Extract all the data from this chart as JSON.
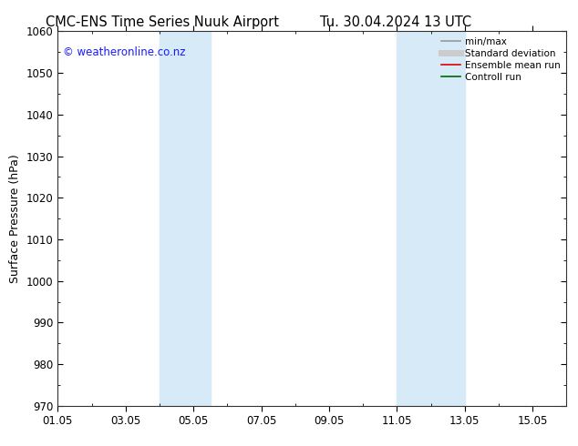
{
  "title_left": "CMC-ENS Time Series Nuuk Airport",
  "title_right": "Tu. 30.04.2024 13 UTC",
  "ylabel": "Surface Pressure (hPa)",
  "ylim": [
    970,
    1060
  ],
  "yticks": [
    970,
    980,
    990,
    1000,
    1010,
    1020,
    1030,
    1040,
    1050,
    1060
  ],
  "x_start": "2024-05-01",
  "x_end": "2024-05-16",
  "xtick_labels": [
    "01.05",
    "03.05",
    "05.05",
    "07.05",
    "09.05",
    "11.05",
    "13.05",
    "15.05"
  ],
  "xtick_days": [
    1,
    3,
    5,
    7,
    9,
    11,
    13,
    15
  ],
  "shaded_bands": [
    {
      "x_start_day": 4.0,
      "x_end_day": 5.5
    },
    {
      "x_start_day": 11.0,
      "x_end_day": 13.0
    }
  ],
  "band_color": "#d6eaf8",
  "watermark_text": "© weatheronline.co.nz",
  "watermark_color": "#1a1aff",
  "legend_items": [
    {
      "label": "min/max",
      "color": "#999999",
      "lw": 1.2
    },
    {
      "label": "Standard deviation",
      "color": "#cccccc",
      "lw": 5
    },
    {
      "label": "Ensemble mean run",
      "color": "#dd0000",
      "lw": 1.2
    },
    {
      "label": "Controll run",
      "color": "#006600",
      "lw": 1.2
    }
  ],
  "bg_color": "#ffffff",
  "title_fontsize": 10.5,
  "tick_fontsize": 8.5,
  "ylabel_fontsize": 9,
  "watermark_fontsize": 8.5
}
